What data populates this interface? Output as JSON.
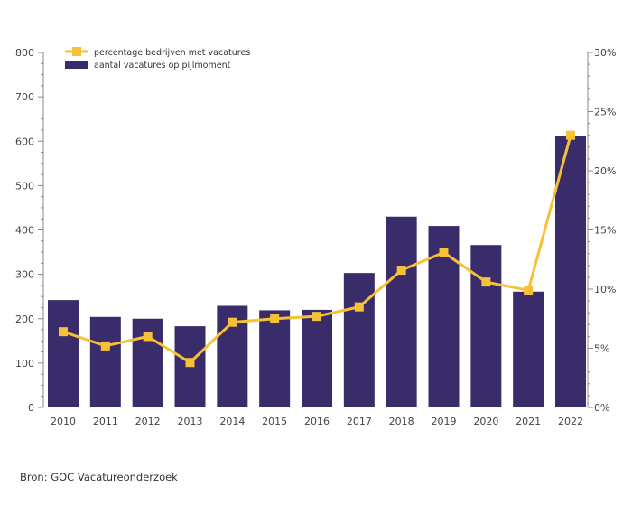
{
  "chart_data": {
    "type": "bar+line",
    "categories": [
      "2010",
      "2011",
      "2012",
      "2013",
      "2014",
      "2015",
      "2016",
      "2017",
      "2018",
      "2019",
      "2020",
      "2021",
      "2022"
    ],
    "series": [
      {
        "name": "aantal vacatures op pijlmoment",
        "type": "bar",
        "axis": "left",
        "color": "#3a2c6b",
        "values": [
          242,
          204,
          200,
          183,
          229,
          219,
          220,
          303,
          430,
          409,
          366,
          261,
          612
        ]
      },
      {
        "name": "percentage bedrijven met vacatures",
        "type": "line",
        "axis": "right",
        "color": "#f6c136",
        "values": [
          6.4,
          5.2,
          6.0,
          3.8,
          7.2,
          7.5,
          7.7,
          8.5,
          11.6,
          13.1,
          10.6,
          9.9,
          23.0
        ]
      }
    ],
    "y_left": {
      "min": 0,
      "max": 800,
      "ticks": [
        "0",
        "100",
        "200",
        "300",
        "400",
        "500",
        "600",
        "700",
        "800"
      ]
    },
    "y_right": {
      "min": 0,
      "max": 30,
      "ticks": [
        "0%",
        "5%",
        "10%",
        "15%",
        "20%",
        "25%",
        "30%"
      ]
    },
    "legend": {
      "placement": "top-left",
      "items": [
        {
          "label": "percentage bedrijven met vacatures",
          "kind": "line",
          "color": "#f6c136"
        },
        {
          "label": "aantal vacatures op pijlmoment",
          "kind": "bar",
          "color": "#3a2c6b"
        }
      ]
    },
    "grid": false
  },
  "source": "Bron: GOC Vacatureonderzoek"
}
